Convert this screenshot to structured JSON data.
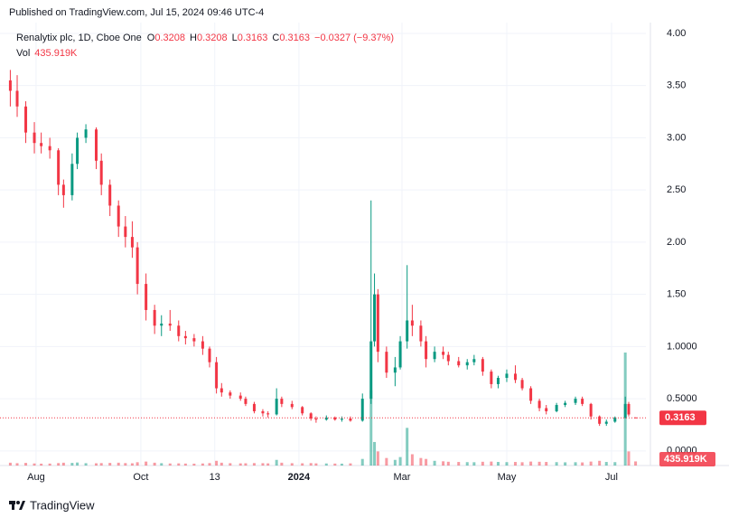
{
  "published": "Published on TradingView.com, Jul 15, 2024 09:46 UTC-4",
  "footer": "TradingView",
  "chart_data": {
    "type": "candlestick",
    "title": "Renalytix plc, 1D, Cboe One",
    "ohlc_labels": [
      "O",
      "H",
      "L",
      "C"
    ],
    "change_text": "−0.0327 (−9.37%)",
    "volume_name": "Vol",
    "last_volume_label": "435.919K",
    "up_color": "#089981",
    "down_color": "#f23645",
    "grid": true,
    "xlim": [
      "2023-07-11",
      "2024-07-21"
    ],
    "xticks": [
      {
        "value": "2023-08-01",
        "label": "Aug"
      },
      {
        "value": "2023-10-01",
        "label": "Oct"
      },
      {
        "value": "2023-11-13",
        "label": "13"
      },
      {
        "value": "2024-01-01",
        "label": "2024"
      },
      {
        "value": "2024-03-01",
        "label": "Mar"
      },
      {
        "value": "2024-05-01",
        "label": "May"
      },
      {
        "value": "2024-07-01",
        "label": "Jul"
      }
    ],
    "ylim": [
      -0.14,
      4.32
    ],
    "yticks": [
      {
        "value": 0,
        "label": "0.0000"
      },
      {
        "value": 0.5,
        "label": "0.5000"
      },
      {
        "value": 1,
        "label": "1.0000"
      },
      {
        "value": 1.5,
        "label": "1.50"
      },
      {
        "value": 2,
        "label": "2.00"
      },
      {
        "value": 2.5,
        "label": "2.50"
      },
      {
        "value": 3,
        "label": "3.00"
      },
      {
        "value": 3.5,
        "label": "3.50"
      },
      {
        "value": 4,
        "label": "4.00"
      }
    ],
    "x": [
      "2023-07-17",
      "2023-07-21",
      "2023-07-26",
      "2023-07-31",
      "2023-08-04",
      "2023-08-09",
      "2023-08-14",
      "2023-08-17",
      "2023-08-22",
      "2023-08-25",
      "2023-08-30",
      "2023-09-05",
      "2023-09-08",
      "2023-09-13",
      "2023-09-18",
      "2023-09-22",
      "2023-09-26",
      "2023-09-29",
      "2023-10-04",
      "2023-10-09",
      "2023-10-13",
      "2023-10-18",
      "2023-10-23",
      "2023-10-27",
      "2023-11-01",
      "2023-11-06",
      "2023-11-10",
      "2023-11-14",
      "2023-11-17",
      "2023-11-22",
      "2023-11-28",
      "2023-12-01",
      "2023-12-06",
      "2023-12-11",
      "2023-12-14",
      "2023-12-19",
      "2023-12-22",
      "2023-12-28",
      "2024-01-03",
      "2024-01-08",
      "2024-01-11",
      "2024-01-17",
      "2024-01-22",
      "2024-01-26",
      "2024-01-31",
      "2024-02-07",
      "2024-02-12",
      "2024-02-14",
      "2024-02-16",
      "2024-02-21",
      "2024-02-26",
      "2024-02-29",
      "2024-03-04",
      "2024-03-07",
      "2024-03-12",
      "2024-03-15",
      "2024-03-20",
      "2024-03-25",
      "2024-03-28",
      "2024-04-03",
      "2024-04-08",
      "2024-04-12",
      "2024-04-17",
      "2024-04-22",
      "2024-04-26",
      "2024-05-01",
      "2024-05-06",
      "2024-05-10",
      "2024-05-15",
      "2024-05-20",
      "2024-05-24",
      "2024-05-30",
      "2024-06-04",
      "2024-06-10",
      "2024-06-14",
      "2024-06-19",
      "2024-06-24",
      "2024-06-28",
      "2024-07-03",
      "2024-07-09",
      "2024-07-11",
      "2024-07-15"
    ],
    "open": [
      3.55,
      3.45,
      3.3,
      3.05,
      2.95,
      2.92,
      2.88,
      2.55,
      2.45,
      2.75,
      3.0,
      3.08,
      2.78,
      2.55,
      2.35,
      2.15,
      2.05,
      1.95,
      1.6,
      1.35,
      1.2,
      1.22,
      1.2,
      1.1,
      1.08,
      1.05,
      0.98,
      0.85,
      0.6,
      0.56,
      0.53,
      0.5,
      0.45,
      0.38,
      0.36,
      0.35,
      0.5,
      0.45,
      0.42,
      0.36,
      0.31,
      0.3,
      0.32,
      0.3,
      0.31,
      0.29,
      0.5,
      1.05,
      1.5,
      0.95,
      0.75,
      0.8,
      1.05,
      1.25,
      1.2,
      1.05,
      0.88,
      0.95,
      0.92,
      0.86,
      0.82,
      0.85,
      0.88,
      0.76,
      0.64,
      0.7,
      0.74,
      0.68,
      0.6,
      0.48,
      0.41,
      0.38,
      0.44,
      0.46,
      0.5,
      0.45,
      0.33,
      0.26,
      0.28,
      0.32,
      0.45,
      0.3208
    ],
    "high": [
      3.65,
      3.6,
      3.35,
      3.15,
      3.05,
      3.0,
      2.9,
      2.6,
      2.85,
      3.05,
      3.13,
      3.1,
      2.85,
      2.6,
      2.4,
      2.25,
      2.2,
      2.0,
      1.7,
      1.4,
      1.3,
      1.35,
      1.25,
      1.15,
      1.12,
      1.1,
      1.0,
      0.9,
      0.65,
      0.58,
      0.56,
      0.52,
      0.47,
      0.4,
      0.38,
      0.6,
      0.52,
      0.48,
      0.43,
      0.37,
      0.33,
      0.34,
      0.33,
      0.33,
      0.33,
      0.55,
      2.4,
      1.7,
      1.55,
      1.0,
      0.9,
      1.1,
      1.78,
      1.4,
      1.25,
      1.1,
      1.0,
      1.0,
      0.95,
      0.9,
      0.88,
      0.92,
      0.9,
      0.78,
      0.72,
      0.78,
      0.82,
      0.7,
      0.62,
      0.5,
      0.44,
      0.46,
      0.48,
      0.52,
      0.52,
      0.46,
      0.34,
      0.3,
      0.33,
      0.52,
      0.47,
      0.3208
    ],
    "low": [
      3.3,
      3.2,
      2.95,
      2.85,
      2.85,
      2.8,
      2.45,
      2.33,
      2.4,
      2.7,
      2.95,
      2.7,
      2.45,
      2.25,
      2.05,
      1.95,
      1.85,
      1.5,
      1.25,
      1.12,
      1.1,
      1.15,
      1.05,
      1.02,
      1.0,
      0.92,
      0.8,
      0.55,
      0.52,
      0.5,
      0.48,
      0.43,
      0.36,
      0.33,
      0.32,
      0.34,
      0.42,
      0.4,
      0.34,
      0.29,
      0.27,
      0.29,
      0.29,
      0.28,
      0.28,
      0.28,
      0.45,
      1.0,
      0.85,
      0.7,
      0.62,
      0.78,
      0.98,
      1.1,
      1.0,
      0.8,
      0.85,
      0.88,
      0.82,
      0.8,
      0.78,
      0.82,
      0.72,
      0.6,
      0.6,
      0.66,
      0.65,
      0.58,
      0.45,
      0.38,
      0.35,
      0.37,
      0.42,
      0.44,
      0.43,
      0.3,
      0.24,
      0.24,
      0.27,
      0.31,
      0.33,
      0.3163
    ],
    "close": [
      3.45,
      3.3,
      3.05,
      2.95,
      2.92,
      2.88,
      2.55,
      2.45,
      2.75,
      3.0,
      3.08,
      2.78,
      2.55,
      2.35,
      2.15,
      2.05,
      1.95,
      1.6,
      1.35,
      1.2,
      1.22,
      1.2,
      1.1,
      1.08,
      1.05,
      0.98,
      0.85,
      0.6,
      0.56,
      0.53,
      0.5,
      0.45,
      0.38,
      0.36,
      0.35,
      0.5,
      0.45,
      0.42,
      0.36,
      0.31,
      0.3,
      0.32,
      0.3,
      0.31,
      0.29,
      0.5,
      1.05,
      1.5,
      0.95,
      0.75,
      0.8,
      1.05,
      1.25,
      1.2,
      1.05,
      0.88,
      0.95,
      0.92,
      0.86,
      0.82,
      0.85,
      0.88,
      0.76,
      0.64,
      0.7,
      0.74,
      0.68,
      0.6,
      0.48,
      0.41,
      0.38,
      0.44,
      0.46,
      0.5,
      0.45,
      0.33,
      0.26,
      0.28,
      0.32,
      0.45,
      0.349,
      0.3163
    ],
    "volume": [
      300000,
      250000,
      280000,
      220000,
      200000,
      210000,
      260000,
      300000,
      280000,
      320000,
      250000,
      240000,
      260000,
      280000,
      300000,
      260000,
      240000,
      350000,
      420000,
      300000,
      250000,
      220000,
      230000,
      210000,
      200000,
      220000,
      260000,
      500000,
      300000,
      250000,
      230000,
      240000,
      260000,
      250000,
      230000,
      600000,
      300000,
      250000,
      240000,
      260000,
      230000,
      220000,
      210000,
      200000,
      230000,
      700000,
      8000000,
      2500000,
      1500000,
      800000,
      600000,
      900000,
      4000000,
      1200000,
      800000,
      700000,
      500000,
      450000,
      400000,
      380000,
      360000,
      350000,
      400000,
      420000,
      380000,
      360000,
      380000,
      350000,
      420000,
      400000,
      380000,
      360000,
      340000,
      350000,
      330000,
      420000,
      500000,
      380000,
      360000,
      12000000,
      1500000,
      435919
    ]
  }
}
